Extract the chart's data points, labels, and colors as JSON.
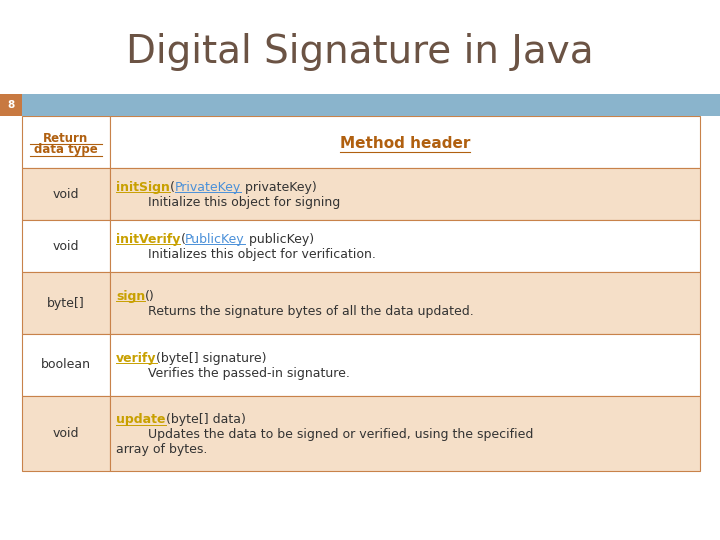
{
  "title": "Digital Signature in Java",
  "title_color": "#6b5344",
  "title_fontsize": 28,
  "slide_number": "8",
  "slide_number_bg": "#c87941",
  "header_bg": "#8ab4cc",
  "table_border_color": "#c8824a",
  "header_text_color": "#b06010",
  "col1_header": "Return\ndata type",
  "col2_header": "Method header",
  "rows": [
    {
      "col1": "void",
      "lines": [
        [
          {
            "text": "initSign",
            "color": "#c8a000",
            "underline": true,
            "bold": true,
            "fs": 9
          },
          {
            "text": "(",
            "color": "#333333",
            "underline": false,
            "bold": false,
            "fs": 9
          },
          {
            "text": "PrivateKey",
            "color": "#4a90d9",
            "underline": true,
            "bold": false,
            "fs": 9
          },
          {
            "text": " privateKey)",
            "color": "#333333",
            "underline": false,
            "bold": false,
            "fs": 9
          }
        ],
        [
          {
            "text": "        Initialize this object for signing",
            "color": "#333333",
            "underline": false,
            "bold": false,
            "fs": 9
          }
        ]
      ],
      "bg": "#f5dfc8"
    },
    {
      "col1": "void",
      "lines": [
        [
          {
            "text": "initVerify",
            "color": "#c8a000",
            "underline": true,
            "bold": true,
            "fs": 9
          },
          {
            "text": "(",
            "color": "#333333",
            "underline": false,
            "bold": false,
            "fs": 9
          },
          {
            "text": "PublicKey",
            "color": "#4a90d9",
            "underline": true,
            "bold": false,
            "fs": 9
          },
          {
            "text": " publicKey)",
            "color": "#333333",
            "underline": false,
            "bold": false,
            "fs": 9
          }
        ],
        [
          {
            "text": "        Initializes this object for verification.",
            "color": "#333333",
            "underline": false,
            "bold": false,
            "fs": 9
          }
        ]
      ],
      "bg": "#ffffff"
    },
    {
      "col1": "byte[]",
      "lines": [
        [
          {
            "text": "sign",
            "color": "#c8a000",
            "underline": true,
            "bold": true,
            "fs": 9
          },
          {
            "text": "()",
            "color": "#333333",
            "underline": false,
            "bold": false,
            "fs": 9
          }
        ],
        [
          {
            "text": "        Returns the signature bytes of all the data updated.",
            "color": "#333333",
            "underline": false,
            "bold": false,
            "fs": 9
          }
        ]
      ],
      "bg": "#f5dfc8"
    },
    {
      "col1": "boolean",
      "lines": [
        [
          {
            "text": "verify",
            "color": "#c8a000",
            "underline": true,
            "bold": true,
            "fs": 9
          },
          {
            "text": "(byte[] signature)",
            "color": "#333333",
            "underline": false,
            "bold": false,
            "fs": 9
          }
        ],
        [
          {
            "text": "        Verifies the passed-in signature.",
            "color": "#333333",
            "underline": false,
            "bold": false,
            "fs": 9
          }
        ]
      ],
      "bg": "#ffffff"
    },
    {
      "col1": "void",
      "lines": [
        [
          {
            "text": "update",
            "color": "#c8a000",
            "underline": true,
            "bold": true,
            "fs": 9
          },
          {
            "text": "(byte[] data)",
            "color": "#333333",
            "underline": false,
            "bold": false,
            "fs": 9
          }
        ],
        [
          {
            "text": "        Updates the data to be signed or verified, using the specified",
            "color": "#333333",
            "underline": false,
            "bold": false,
            "fs": 9
          }
        ],
        [
          {
            "text": "array of bytes.",
            "color": "#333333",
            "underline": false,
            "bold": false,
            "fs": 9
          }
        ]
      ],
      "bg": "#f5dfc8"
    }
  ],
  "bg_color": "#ffffff"
}
